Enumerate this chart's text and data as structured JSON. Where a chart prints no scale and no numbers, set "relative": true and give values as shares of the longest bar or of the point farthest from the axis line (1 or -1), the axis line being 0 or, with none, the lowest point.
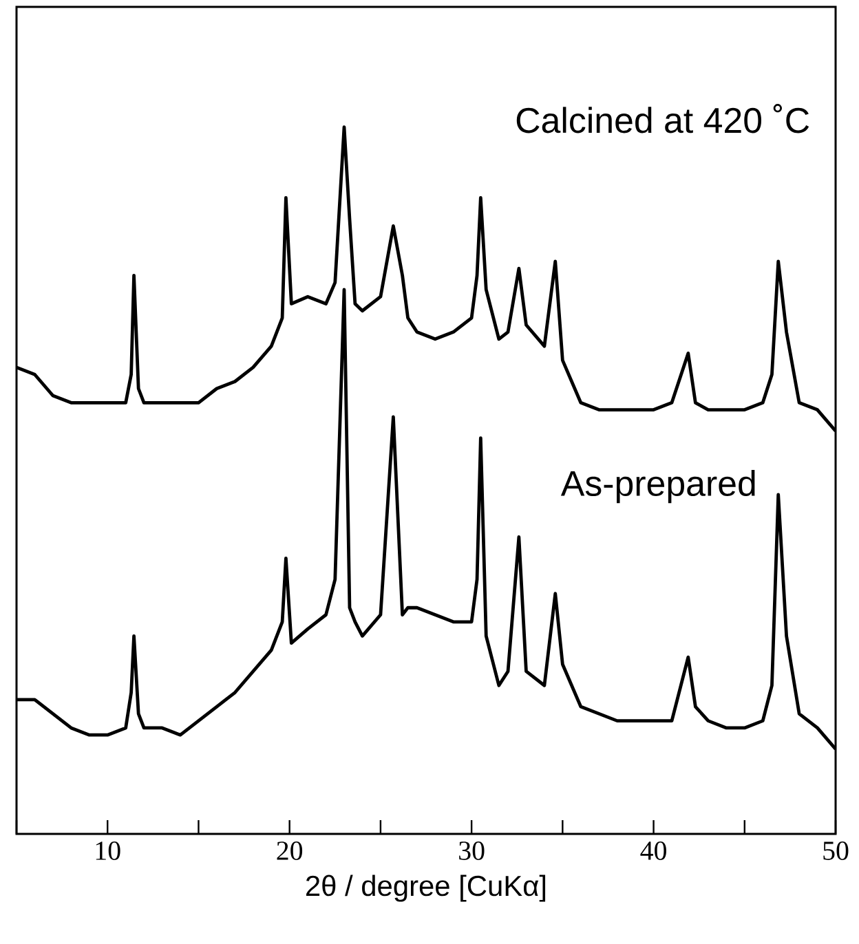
{
  "chart_data": {
    "type": "line",
    "relative": true,
    "xlabel": "2θ / degree [CuKα]",
    "x": [
      5,
      6,
      7,
      8,
      9,
      10,
      11,
      11.3,
      11.45,
      11.7,
      12,
      13,
      14,
      15,
      16,
      17,
      18,
      19,
      19.6,
      19.8,
      20.1,
      21,
      22,
      22.5,
      23,
      23.3,
      23.6,
      24,
      25,
      25.7,
      26.2,
      26.5,
      27,
      28,
      29,
      30,
      30.3,
      30.5,
      30.8,
      31.5,
      32,
      32.6,
      33,
      34,
      34.6,
      35,
      36,
      37,
      38,
      39,
      40,
      41,
      41.9,
      42.3,
      43,
      44,
      45,
      46,
      46.5,
      46.85,
      47.3,
      48,
      49,
      50
    ],
    "series": [
      {
        "name": "Calcined at 420 ˚C",
        "color": "#000000",
        "values": [
          0.66,
          0.65,
          0.62,
          0.61,
          0.61,
          0.61,
          0.61,
          0.65,
          0.79,
          0.63,
          0.61,
          0.61,
          0.61,
          0.61,
          0.63,
          0.64,
          0.66,
          0.69,
          0.73,
          0.9,
          0.75,
          0.76,
          0.75,
          0.78,
          1.0,
          0.87,
          0.75,
          0.74,
          0.76,
          0.86,
          0.79,
          0.73,
          0.71,
          0.7,
          0.71,
          0.73,
          0.79,
          0.9,
          0.77,
          0.7,
          0.71,
          0.8,
          0.72,
          0.69,
          0.81,
          0.67,
          0.61,
          0.6,
          0.6,
          0.6,
          0.6,
          0.61,
          0.68,
          0.61,
          0.6,
          0.6,
          0.6,
          0.61,
          0.65,
          0.81,
          0.71,
          0.61,
          0.6,
          0.57
        ]
      },
      {
        "name": "As-prepared",
        "color": "#000000",
        "values": [
          0.19,
          0.19,
          0.17,
          0.15,
          0.14,
          0.14,
          0.15,
          0.2,
          0.28,
          0.17,
          0.15,
          0.15,
          0.14,
          0.16,
          0.18,
          0.2,
          0.23,
          0.26,
          0.3,
          0.39,
          0.27,
          0.29,
          0.31,
          0.36,
          0.77,
          0.32,
          0.3,
          0.28,
          0.31,
          0.59,
          0.31,
          0.32,
          0.32,
          0.31,
          0.3,
          0.3,
          0.36,
          0.56,
          0.28,
          0.21,
          0.23,
          0.42,
          0.23,
          0.21,
          0.34,
          0.24,
          0.18,
          0.17,
          0.16,
          0.16,
          0.16,
          0.16,
          0.25,
          0.18,
          0.16,
          0.15,
          0.15,
          0.16,
          0.21,
          0.48,
          0.28,
          0.17,
          0.15,
          0.12
        ]
      }
    ],
    "xlim": [
      5,
      50
    ],
    "xticks": [
      {
        "value": 5,
        "label": null
      },
      10,
      {
        "value": 15,
        "label": null
      },
      20,
      {
        "value": 25,
        "label": null
      },
      30,
      {
        "value": 35,
        "label": null
      },
      40,
      {
        "value": 45,
        "label": null
      },
      50
    ],
    "tick_labels": "x"
  }
}
